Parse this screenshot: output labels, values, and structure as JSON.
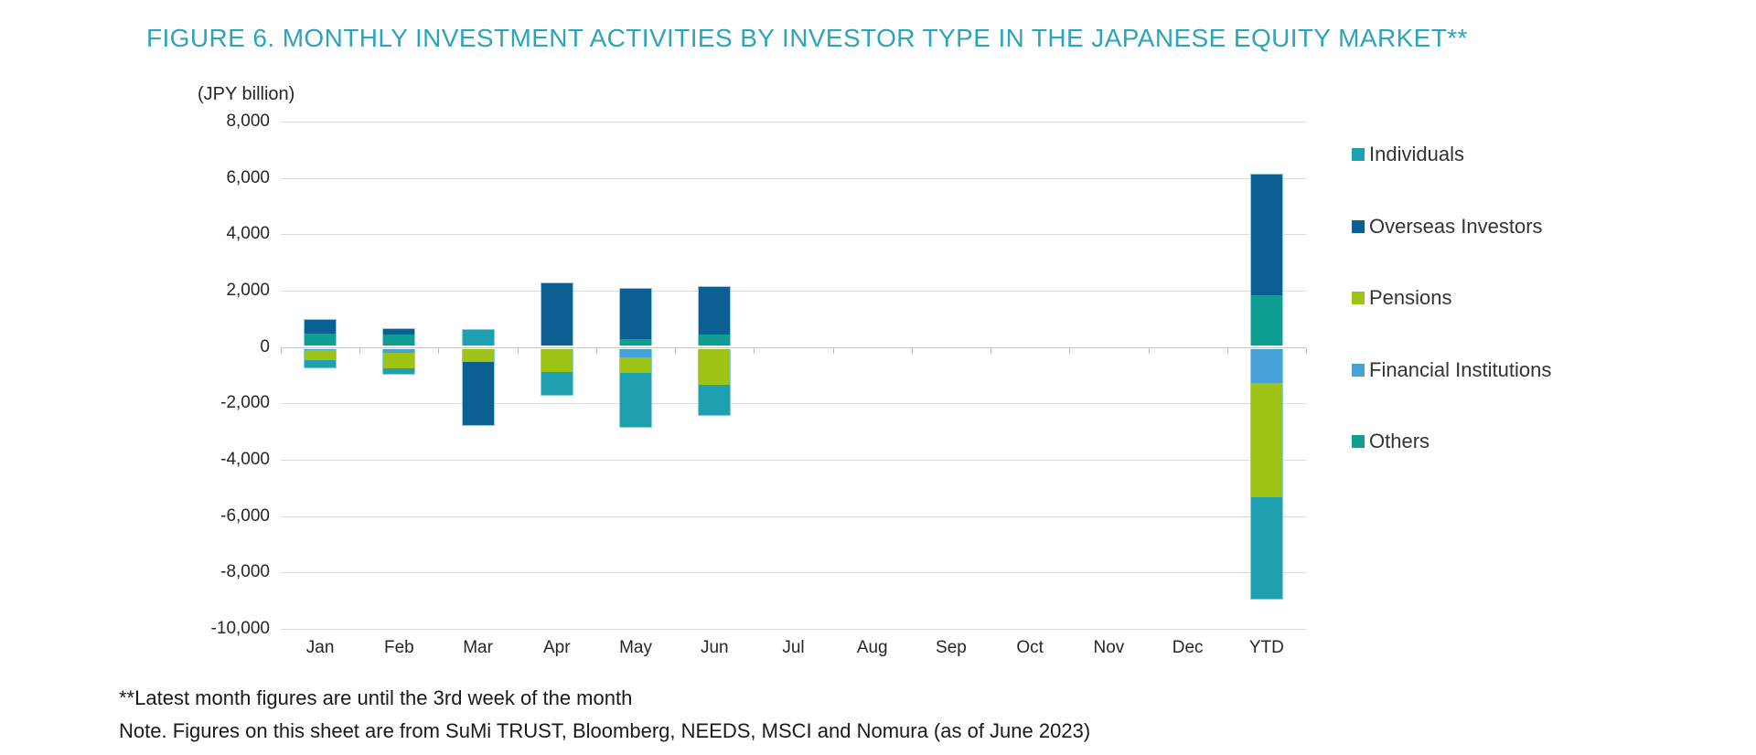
{
  "title": "FIGURE 6. MONTHLY INVESTMENT ACTIVITIES BY INVESTOR TYPE IN THE JAPANESE EQUITY MARKET**",
  "unit_label": "(JPY billion)",
  "footnotes": [
    "**Latest month figures are until the 3rd week of the month",
    "Note. Figures on this sheet are from SuMi TRUST, Bloomberg, NEEDS, MSCI and Nomura (as of June 2023)"
  ],
  "colors": {
    "title": "#2ea4b8",
    "individuals": "#1fa0b1",
    "overseas_investors": "#0b5f92",
    "pensions": "#9dc414",
    "financial_institutions": "#45a1d8",
    "others": "#0e9f92",
    "gridline": "#dcdcdc",
    "text": "#262626"
  },
  "legend": {
    "items": [
      {
        "label": "Individuals",
        "color": "#1fa0b1"
      },
      {
        "label": "Overseas Investors",
        "color": "#0b5f92"
      },
      {
        "label": "Pensions",
        "color": "#9dc414"
      },
      {
        "label": "Financial Institutions",
        "color": "#45a1d8"
      },
      {
        "label": "Others",
        "color": "#0e9f92"
      }
    ]
  },
  "chart_data": {
    "type": "bar",
    "stacked": true,
    "title": "FIGURE 6. MONTHLY INVESTMENT ACTIVITIES BY INVESTOR TYPE IN THE JAPANESE EQUITY MARKET**",
    "ylabel": "(JPY billion)",
    "xlabel": "",
    "ylim": [
      -10000,
      8000
    ],
    "ytick_interval": 2000,
    "y_tick_labels": [
      "8,000",
      "6,000",
      "4,000",
      "2,000",
      "0",
      "-2,000",
      "-4,000",
      "-6,000",
      "-8,000",
      "-10,000"
    ],
    "grid": true,
    "legend_position": "right",
    "categories": [
      "Jan",
      "Feb",
      "Mar",
      "Apr",
      "May",
      "Jun",
      "Jul",
      "Aug",
      "Sep",
      "Oct",
      "Nov",
      "Dec",
      "YTD"
    ],
    "stack_order_from_baseline": [
      "Others",
      "Financial Institutions",
      "Pensions",
      "Overseas Investors",
      "Individuals"
    ],
    "series": [
      {
        "name": "Individuals",
        "color": "#1fa0b1",
        "values": [
          -280,
          -190,
          650,
          -820,
          -1960,
          -1100,
          0,
          0,
          0,
          0,
          0,
          0,
          -3620
        ]
      },
      {
        "name": "Overseas Investors",
        "color": "#0b5f92",
        "values": [
          510,
          200,
          -2290,
          2290,
          1840,
          1730,
          0,
          0,
          0,
          0,
          0,
          0,
          4300
        ]
      },
      {
        "name": "Pensions",
        "color": "#9dc414",
        "values": [
          -400,
          -600,
          -510,
          -900,
          -550,
          -1350,
          0,
          0,
          0,
          0,
          0,
          0,
          -4100
        ]
      },
      {
        "name": "Financial Institutions",
        "color": "#45a1d8",
        "values": [
          -80,
          -180,
          0,
          0,
          -350,
          0,
          0,
          0,
          0,
          0,
          0,
          0,
          -1250
        ]
      },
      {
        "name": "Others",
        "color": "#0e9f92",
        "values": [
          490,
          460,
          0,
          0,
          270,
          430,
          0,
          0,
          0,
          0,
          0,
          0,
          1840
        ]
      }
    ]
  }
}
